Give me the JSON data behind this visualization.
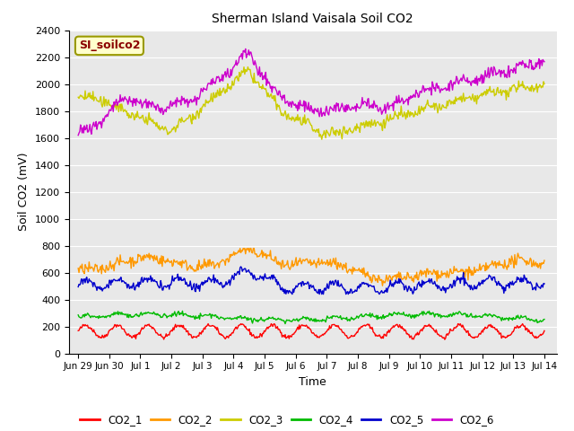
{
  "title": "Sherman Island Vaisala Soil CO2",
  "xlabel": "Time",
  "ylabel": "Soil CO2 (mV)",
  "ylim": [
    0,
    2400
  ],
  "yticks": [
    0,
    200,
    400,
    600,
    800,
    1000,
    1200,
    1400,
    1600,
    1800,
    2000,
    2200,
    2400
  ],
  "xtick_labels": [
    "Jun 29",
    "Jun 30",
    "Jul 1",
    "Jul 2",
    "Jul 3",
    "Jul 4",
    "Jul 5",
    "Jul 6",
    "Jul 7",
    "Jul 8",
    "Jul 9",
    "Jul 10",
    "Jul 11",
    "Jul 12",
    "Jul 13",
    "Jul 14"
  ],
  "xtick_positions": [
    0,
    1,
    2,
    3,
    4,
    5,
    6,
    7,
    8,
    9,
    10,
    11,
    12,
    13,
    14,
    15
  ],
  "colors": {
    "CO2_1": "#ff0000",
    "CO2_2": "#ff9900",
    "CO2_3": "#cccc00",
    "CO2_4": "#00bb00",
    "CO2_5": "#0000cc",
    "CO2_6": "#cc00cc"
  },
  "legend_label": "SI_soilco2",
  "background_color": "#e8e8e8",
  "line_width": 1.0,
  "n_points": 600,
  "figsize": [
    6.4,
    4.8
  ],
  "dpi": 100
}
